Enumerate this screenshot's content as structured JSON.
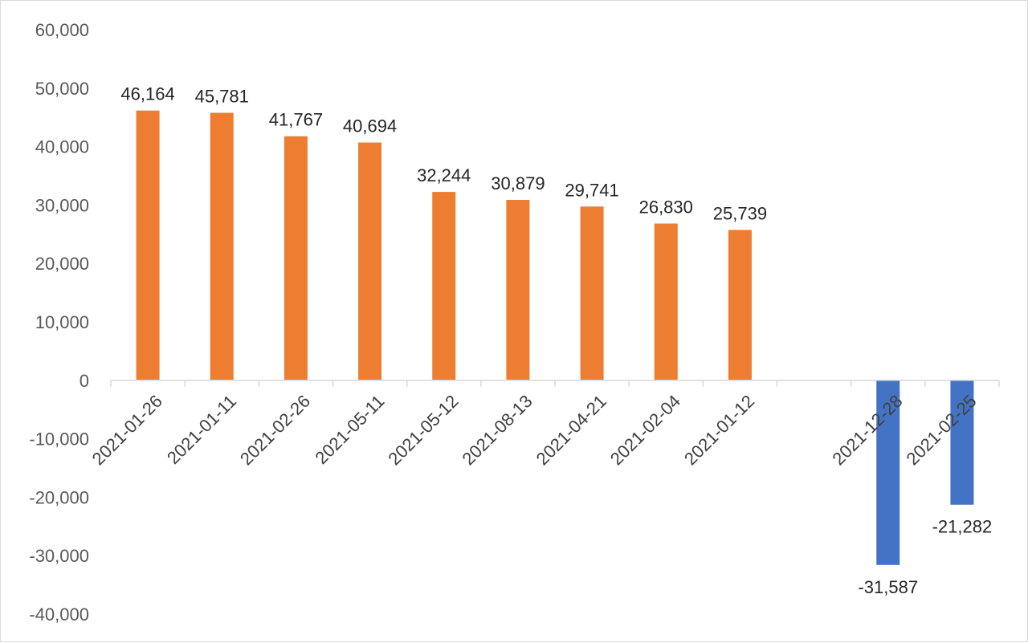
{
  "chart_data": {
    "type": "bar",
    "title": "",
    "xlabel": "",
    "ylabel": "",
    "ylim": [
      -40000,
      60000
    ],
    "yticks": [
      60000,
      50000,
      40000,
      30000,
      20000,
      10000,
      0,
      -10000,
      -20000,
      -30000,
      -40000
    ],
    "ytick_labels": [
      "60,000",
      "50,000",
      "40,000",
      "30,000",
      "20,000",
      "10,000",
      "0",
      "-10,000",
      "-20,000",
      "-30,000",
      "-40,000"
    ],
    "grid": false,
    "legend": "none",
    "categories": [
      "2021-01-26",
      "2021-01-11",
      "2021-02-26",
      "2021-05-11",
      "2021-05-12",
      "2021-08-13",
      "2021-04-21",
      "2021-02-04",
      "2021-01-12",
      "",
      "2021-12-28",
      "2021-02-25"
    ],
    "values": [
      46164,
      45781,
      41767,
      40694,
      32244,
      30879,
      29741,
      26830,
      25739,
      null,
      -31587,
      -21282
    ],
    "data_labels": [
      "46,164",
      "45,781",
      "41,767",
      "40,694",
      "32,244",
      "30,879",
      "29,741",
      "26,830",
      "25,739",
      "",
      "-31,587",
      "-21,282"
    ],
    "colors": {
      "positive": "#ED7D31",
      "negative": "#4472C4",
      "axis": "#d9d9d9"
    }
  }
}
